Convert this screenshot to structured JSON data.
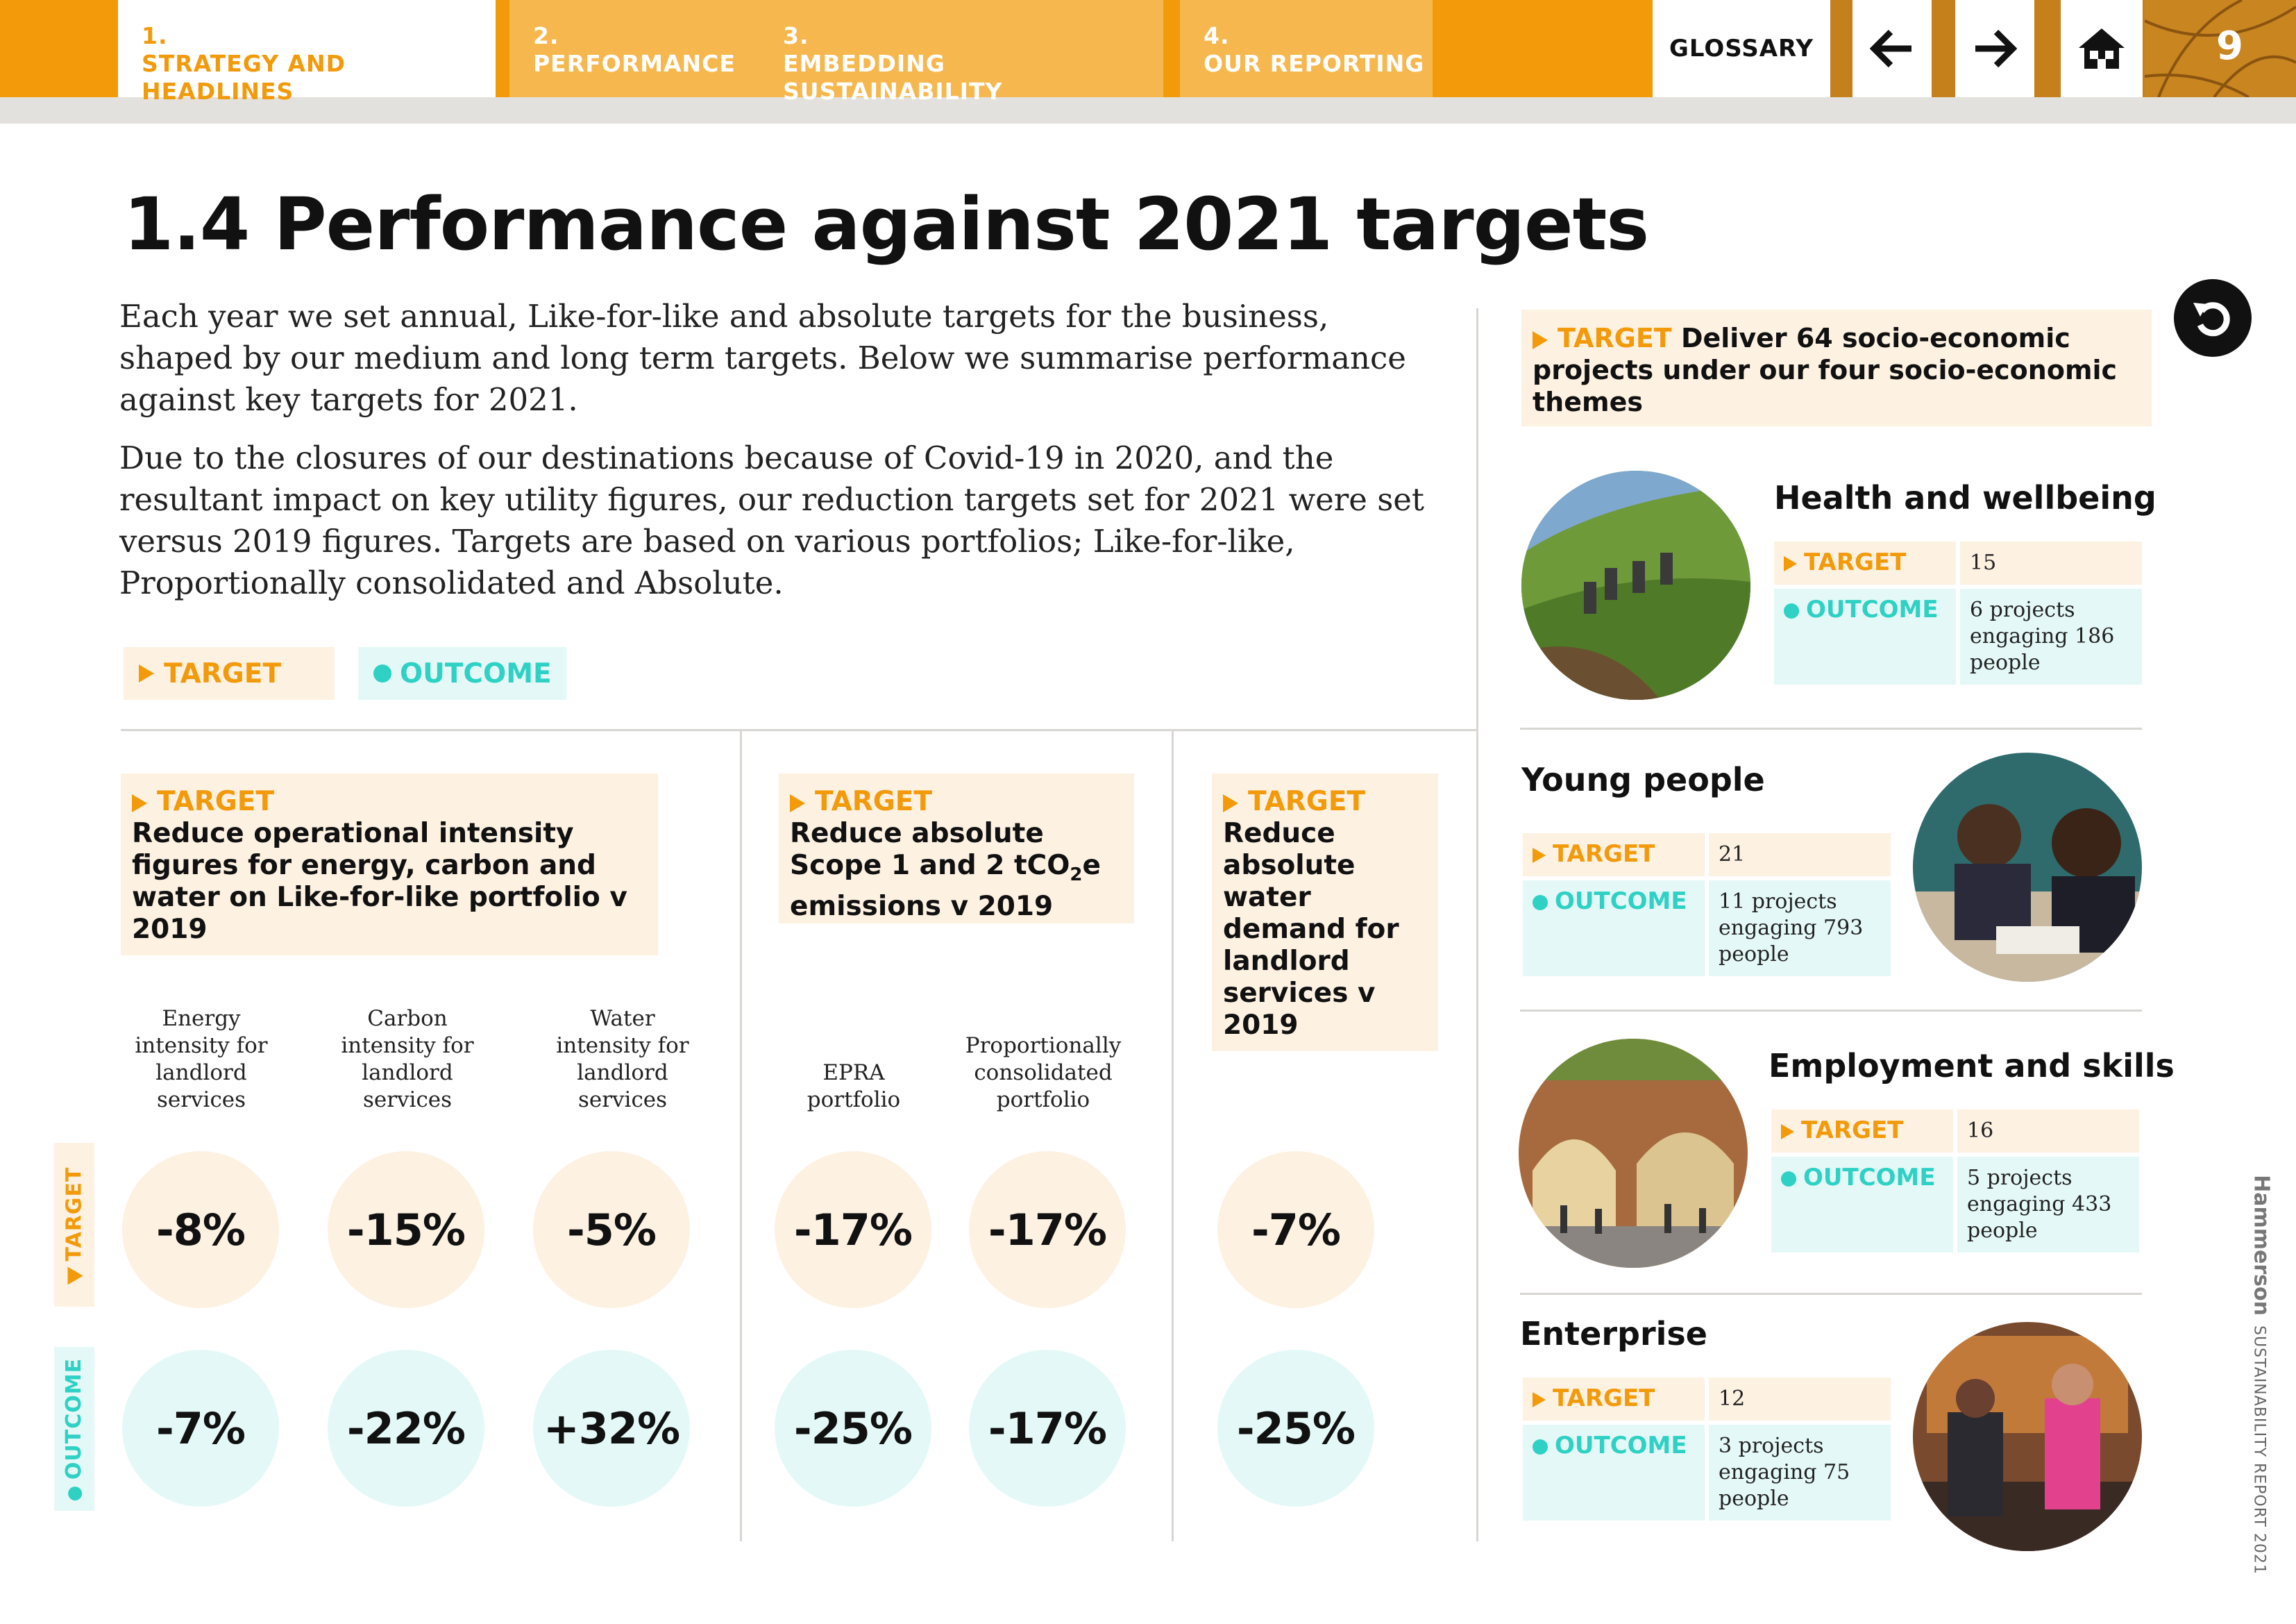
{
  "nav": {
    "tabs": [
      {
        "num": "1.",
        "label": "STRATEGY AND HEADLINES"
      },
      {
        "num": "2.",
        "label": "PERFORMANCE"
      },
      {
        "num": "3.",
        "label": "EMBEDDING SUSTAINABILITY"
      },
      {
        "num": "4.",
        "label": "OUR REPORTING"
      }
    ],
    "glossary": "GLOSSARY",
    "page_number": "9"
  },
  "title": "1.4 Performance against 2021 targets",
  "intro": [
    "Each year we set annual, Like-for-like and absolute targets for the business, shaped by our medium and long term targets. Below we summarise performance against key targets for 2021.",
    "Due to the closures of our destinations because of Covid-19 in 2020, and the resultant impact on key utility figures, our reduction targets set for 2021 were set versus 2019 figures. Targets are based on various portfolios; Like-for-like, Proportionally consolidated and Absolute."
  ],
  "legend": {
    "target": "TARGET",
    "outcome": "OUTCOME"
  },
  "groups": [
    {
      "label": "TARGET",
      "text": "Reduce operational intensity figures for energy, carbon and water on Like-for-like portfolio v 2019",
      "columns": [
        {
          "label": "Energy intensity for landlord services",
          "target": "-8%",
          "outcome": "-7%"
        },
        {
          "label": "Carbon intensity for landlord services",
          "target": "-15%",
          "outcome": "-22%"
        },
        {
          "label": "Water intensity for landlord services",
          "target": "-5%",
          "outcome": "+32%"
        }
      ]
    },
    {
      "label": "TARGET",
      "text_a": "Reduce absolute Scope 1 and 2 tCO",
      "text_sub": "2",
      "text_b": "e emissions v 2019",
      "columns": [
        {
          "label": "EPRA portfolio",
          "target": "-17%",
          "outcome": "-25%"
        },
        {
          "label": "Proportionally consolidated portfolio",
          "target": "-17%",
          "outcome": "-17%"
        }
      ]
    },
    {
      "label": "TARGET",
      "text": "Reduce absolute water demand for landlord services v 2019",
      "columns": [
        {
          "label": "",
          "target": "-7%",
          "outcome": "-25%"
        }
      ]
    }
  ],
  "side_labels": {
    "target": "TARGET",
    "outcome": "OUTCOME"
  },
  "socio": {
    "label": "TARGET",
    "text": "Deliver 64 socio-economic projects under our four socio-economic themes",
    "themes": [
      {
        "title": "Health and wellbeing",
        "target_label": "TARGET",
        "target": "15",
        "outcome_label": "OUTCOME",
        "outcome": "6 projects engaging 186 people"
      },
      {
        "title": "Young people",
        "target_label": "TARGET",
        "target": "21",
        "outcome_label": "OUTCOME",
        "outcome": "11 projects engaging 793 people"
      },
      {
        "title": "Employment and skills",
        "target_label": "TARGET",
        "target": "16",
        "outcome_label": "OUTCOME",
        "outcome": "5 projects engaging 433 people"
      },
      {
        "title": "Enterprise",
        "target_label": "TARGET",
        "target": "12",
        "outcome_label": "OUTCOME",
        "outcome": "3 projects engaging 75 people"
      }
    ]
  },
  "footer": {
    "brand": "Hammerson",
    "report": "SUSTAINABILITY REPORT 2021"
  },
  "colors": {
    "orange": "#f39a0b",
    "teal": "#2ed1c4",
    "target_bg": "#fdf1e2",
    "outcome_bg": "#e4f9f7"
  },
  "icons": {
    "back": "arrow-left-icon",
    "forward": "arrow-right-icon",
    "home": "home-icon",
    "return": "return-icon"
  }
}
